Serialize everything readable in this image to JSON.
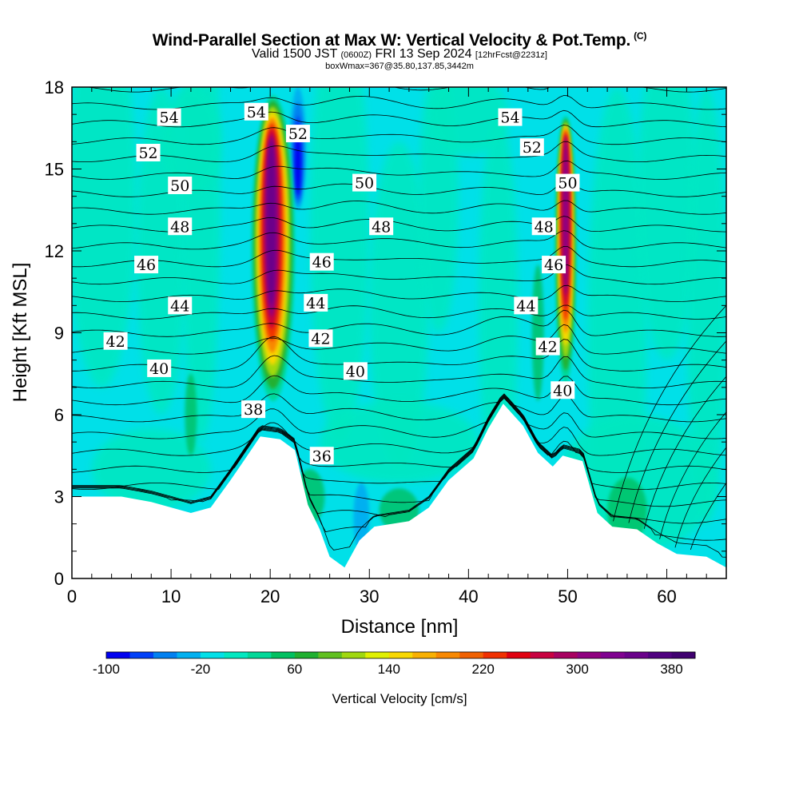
{
  "header": {
    "title": "Wind-Parallel Section at Max W: Vertical Velocity & Pot.Temp.",
    "copyright_mark": "(C)",
    "valid_prefix": "Valid 1500 JST",
    "valid_utc": "(0600Z)",
    "valid_date": "FRI 13 Sep 2024",
    "forecast": "[12hrFcst@2231z]",
    "box_info": "boxWmax=367@35.80,137.85,3442m"
  },
  "chart_data": {
    "type": "heatmap",
    "xlabel": "Distance [nm]",
    "ylabel": "Height [Kft MSL]",
    "xlim": [
      0,
      66
    ],
    "ylim": [
      0,
      18
    ],
    "x_ticks": [
      0,
      10,
      20,
      30,
      40,
      50,
      60
    ],
    "y_ticks": [
      0,
      3,
      6,
      9,
      12,
      15,
      18
    ],
    "colorbar": {
      "label": "Vertical Velocity [cm/s]",
      "min": -100,
      "max": 400,
      "step": 20,
      "tick_labels": [
        -100,
        -20,
        60,
        140,
        220,
        300,
        380
      ],
      "colors": [
        "#0000f0",
        "#0040f8",
        "#0080f0",
        "#00b0f0",
        "#00e0e8",
        "#00e8c0",
        "#00d898",
        "#00c060",
        "#20b030",
        "#60c020",
        "#a0d810",
        "#e0f000",
        "#f8d800",
        "#f8b000",
        "#f88800",
        "#f06000",
        "#f03000",
        "#e00010",
        "#c80040",
        "#a80060",
        "#900080",
        "#800090",
        "#6a008a",
        "#500080",
        "#400070"
      ]
    },
    "terrain": [
      [
        0,
        3.0
      ],
      [
        5,
        3.0
      ],
      [
        8,
        2.8
      ],
      [
        12,
        2.4
      ],
      [
        14,
        2.6
      ],
      [
        16,
        3.6
      ],
      [
        17.5,
        4.4
      ],
      [
        19,
        5.2
      ],
      [
        21,
        5.1
      ],
      [
        22.5,
        4.7
      ],
      [
        23.8,
        2.7
      ],
      [
        25,
        1.8
      ],
      [
        26,
        0.8
      ],
      [
        27.5,
        0.4
      ],
      [
        29,
        1.4
      ],
      [
        30.5,
        1.9
      ],
      [
        34,
        2.1
      ],
      [
        36,
        2.6
      ],
      [
        38,
        3.6
      ],
      [
        40.5,
        4.4
      ],
      [
        42,
        5.5
      ],
      [
        43.5,
        6.4
      ],
      [
        45.5,
        5.6
      ],
      [
        47,
        4.6
      ],
      [
        48.5,
        4.1
      ],
      [
        49.5,
        4.5
      ],
      [
        51.5,
        4.3
      ],
      [
        53,
        2.4
      ],
      [
        54.5,
        1.9
      ],
      [
        57,
        1.8
      ],
      [
        59,
        1.3
      ],
      [
        61,
        0.9
      ],
      [
        64,
        0.8
      ],
      [
        66,
        0.4
      ]
    ],
    "updrafts": [
      {
        "x": 20.3,
        "y_bottom": 6.2,
        "y_top": 18,
        "peak": 367
      },
      {
        "x": 49.8,
        "y_bottom": 6.9,
        "y_top": 17.2,
        "peak": 330
      }
    ],
    "downdrafts": [
      {
        "x": 22.8,
        "y_bottom": 13.5,
        "y_top": 18,
        "min": -90
      },
      {
        "x": 29.2,
        "y_bottom": 1.0,
        "y_top": 3.5,
        "min": -40
      }
    ],
    "theta_labels": [
      {
        "value": "54",
        "x": 9.8,
        "y": 16.9
      },
      {
        "value": "54",
        "x": 18.6,
        "y": 17.1
      },
      {
        "value": "54",
        "x": 44.2,
        "y": 16.9
      },
      {
        "value": "52",
        "x": 7.7,
        "y": 15.6
      },
      {
        "value": "52",
        "x": 22.8,
        "y": 16.3
      },
      {
        "value": "52",
        "x": 46.4,
        "y": 15.8
      },
      {
        "value": "50",
        "x": 10.9,
        "y": 14.4
      },
      {
        "value": "50",
        "x": 29.5,
        "y": 14.5
      },
      {
        "value": "50",
        "x": 50,
        "y": 14.5
      },
      {
        "value": "48",
        "x": 10.9,
        "y": 12.9
      },
      {
        "value": "48",
        "x": 31.2,
        "y": 12.9
      },
      {
        "value": "48",
        "x": 47.6,
        "y": 12.9
      },
      {
        "value": "46",
        "x": 7.5,
        "y": 11.5
      },
      {
        "value": "46",
        "x": 25.2,
        "y": 11.6
      },
      {
        "value": "46",
        "x": 48.6,
        "y": 11.5
      },
      {
        "value": "44",
        "x": 10.9,
        "y": 10.0
      },
      {
        "value": "44",
        "x": 24.6,
        "y": 10.1
      },
      {
        "value": "44",
        "x": 45.8,
        "y": 10.0
      },
      {
        "value": "42",
        "x": 4.4,
        "y": 8.7
      },
      {
        "value": "42",
        "x": 25.1,
        "y": 8.8
      },
      {
        "value": "42",
        "x": 48,
        "y": 8.5
      },
      {
        "value": "40",
        "x": 8.8,
        "y": 7.7
      },
      {
        "value": "40",
        "x": 28.6,
        "y": 7.6
      },
      {
        "value": "40",
        "x": 49.5,
        "y": 6.9
      },
      {
        "value": "38",
        "x": 18.3,
        "y": 6.2
      },
      {
        "value": "36",
        "x": 25.2,
        "y": 4.5
      }
    ]
  }
}
